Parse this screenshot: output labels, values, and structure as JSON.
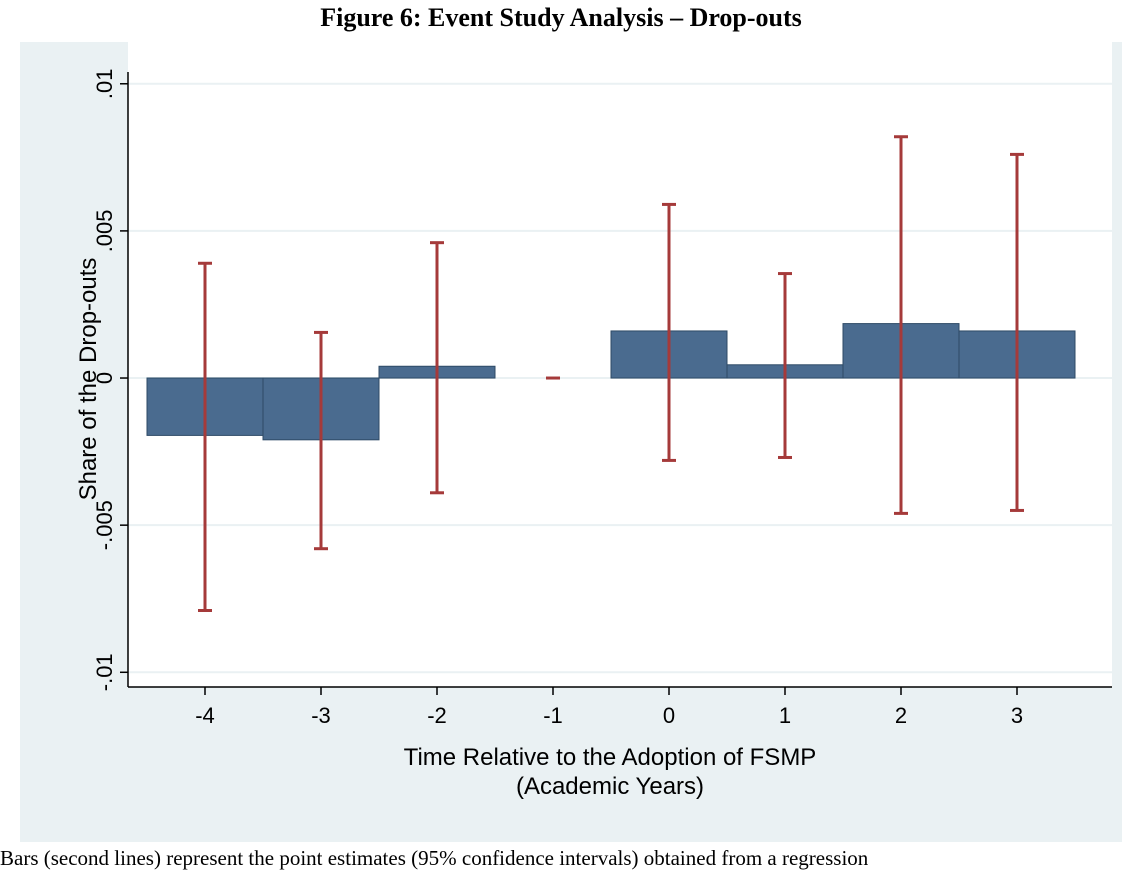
{
  "figure_title": "Figure 6: Event Study Analysis – Drop-outs",
  "caption": "Bars (second lines) represent the point estimates (95% confidence intervals) obtained from a regression",
  "chart_data": {
    "type": "bar",
    "title": "Figure 6: Event Study Analysis – Drop-outs",
    "xlabel": "Time Relative to the Adoption of FSMP",
    "xlabel2": "(Academic Years)",
    "ylabel": "Share of the Drop-outs",
    "categories": [
      "-4",
      "-3",
      "-2",
      "-1",
      "0",
      "1",
      "2",
      "3"
    ],
    "values": [
      -0.00195,
      -0.0021,
      0.0004,
      0.0,
      0.0016,
      0.00045,
      0.00185,
      0.0016
    ],
    "ci_low": [
      -0.0079,
      -0.0058,
      -0.0039,
      0.0,
      -0.0028,
      -0.0027,
      -0.0046,
      -0.0045
    ],
    "ci_high": [
      0.0039,
      0.00155,
      0.0046,
      0.0,
      0.0059,
      0.00355,
      0.0082,
      0.0076
    ],
    "ylim": [
      -0.0105,
      0.0104
    ],
    "yticks": [
      0.01,
      0.005,
      0,
      -0.005,
      -0.01
    ],
    "ytick_labels": [
      ".01",
      ".005",
      "0",
      "-.005",
      "-.01"
    ],
    "grid": true,
    "bar_color": "#4a6b8f",
    "ci_color": "#a53a3a",
    "gridline_color": "#ffffff",
    "panel_color": "#eaf1f3"
  }
}
